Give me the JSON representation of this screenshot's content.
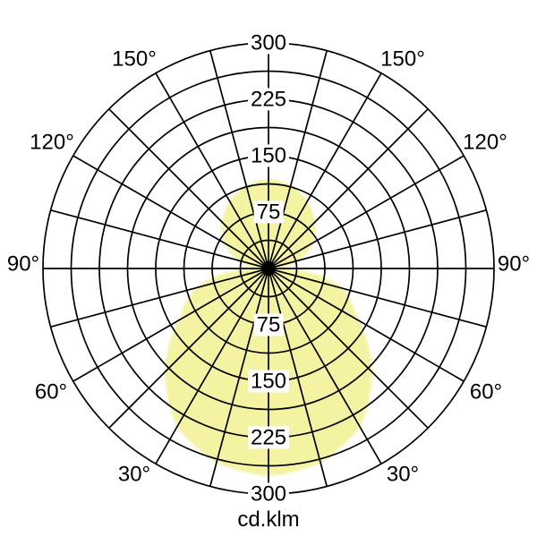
{
  "chart_data": {
    "type": "area",
    "projection": "polar",
    "units_label": "cd.klm",
    "fill_color": "#f3f3a1",
    "fill_edge_color": "#f8f8d0",
    "grid_color": "#000000",
    "background_color": "#ffffff",
    "radial_axis": {
      "min": 0,
      "max": 300,
      "ring_step": 37.5,
      "tick_labels": [
        "75",
        "150",
        "225",
        "300"
      ],
      "tick_label_sides": "above-and-below-center"
    },
    "angular_axis": {
      "spoke_step_deg": 15,
      "zero_at": "bottom",
      "labels": [
        "30°",
        "60°",
        "90°",
        "120°",
        "150°"
      ],
      "labeled_on": "both-sides"
    },
    "series": [
      {
        "name": "lower-hemisphere-lobe",
        "mirror_symmetric": true,
        "gamma_deg": [
          0,
          15,
          30,
          45,
          60,
          75,
          82,
          87,
          90
        ],
        "intensity_cd_klm": [
          275,
          266,
          242,
          193,
          136,
          98,
          62,
          25,
          0
        ]
      },
      {
        "name": "upper-hemisphere-lobe",
        "mirror_symmetric": true,
        "gamma_deg": [
          180,
          165,
          150,
          135,
          120,
          105,
          98,
          93,
          90
        ],
        "intensity_cd_klm": [
          118,
          113,
          102,
          86,
          66,
          38,
          18,
          6,
          0
        ]
      }
    ]
  }
}
